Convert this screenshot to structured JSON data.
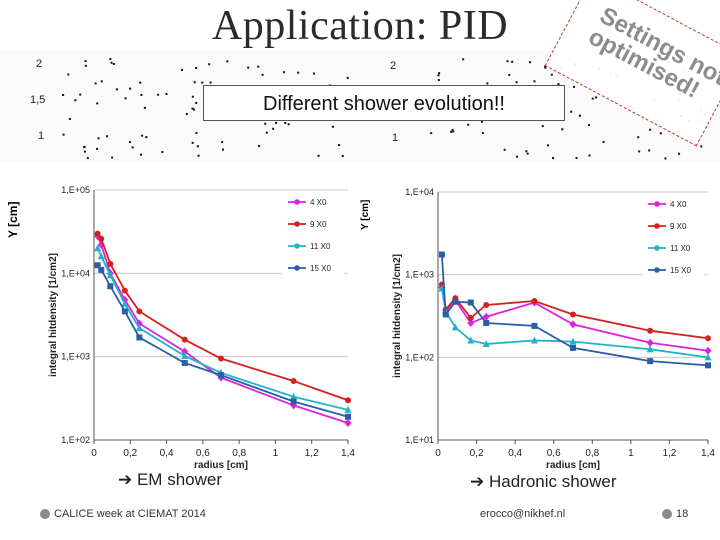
{
  "slide": {
    "title": "Application: PID",
    "banner": "Different shower evolution!!",
    "stamp": "Settings not optimised!",
    "left_caption": "➔ EM shower",
    "right_caption": "➔ Hadronic shower",
    "footer_left": "CALICE week at CIEMAT 2014",
    "footer_center": "erocco@nikhef.nl",
    "page_number": "18"
  },
  "scatter_axes": {
    "left_ticks": [
      "2",
      "1,5",
      "1"
    ],
    "right_ticks": [
      "2",
      "1"
    ],
    "left_ylabel": "Y [cm]",
    "right_ylabel": "Y [cm]"
  },
  "colors": {
    "4X0": "#e020e0",
    "9X0": "#d42020",
    "11X0": "#20b4c8",
    "15X0": "#2a5ea8"
  },
  "chart_data": [
    {
      "type": "line",
      "name": "EM shower",
      "xlabel": "radius [cm]",
      "ylabel": "integral hitdensity [1/cm2]",
      "yscale": "log",
      "xlim": [
        0,
        1.4
      ],
      "ylim": [
        100,
        100000
      ],
      "xticks": [
        "0",
        "0,2",
        "0,4",
        "0,6",
        "0,8",
        "1",
        "1,2",
        "1,4"
      ],
      "yticks": [
        "1,E+02",
        "1,E+03",
        "1,E+04",
        "1,E+05"
      ],
      "series": [
        {
          "name": "4 X0",
          "x": [
            0.02,
            0.04,
            0.09,
            0.17,
            0.25,
            0.5,
            0.7,
            1.1,
            1.4
          ],
          "values": [
            28000,
            22000,
            10000,
            4800,
            2500,
            1150,
            560,
            260,
            160
          ]
        },
        {
          "name": "9 X0",
          "x": [
            0.02,
            0.04,
            0.09,
            0.17,
            0.25,
            0.5,
            0.7,
            1.1,
            1.4
          ],
          "values": [
            30000,
            26000,
            13000,
            6200,
            3500,
            1600,
            950,
            510,
            300
          ]
        },
        {
          "name": "11 X0",
          "x": [
            0.02,
            0.04,
            0.09,
            0.17,
            0.25,
            0.5,
            0.7,
            1.1,
            1.4
          ],
          "values": [
            20000,
            16000,
            9500,
            4300,
            2200,
            1020,
            640,
            330,
            230
          ]
        },
        {
          "name": "15 X0",
          "x": [
            0.02,
            0.04,
            0.09,
            0.17,
            0.25,
            0.5,
            0.7,
            1.1,
            1.4
          ],
          "values": [
            12500,
            11000,
            7000,
            3500,
            1700,
            840,
            600,
            290,
            190
          ]
        }
      ]
    },
    {
      "type": "line",
      "name": "Hadronic shower",
      "xlabel": "radius [cm]",
      "ylabel": "integral hitdensity [1/cm2]",
      "yscale": "log",
      "xlim": [
        0,
        1.4
      ],
      "ylim": [
        10,
        10000
      ],
      "xticks": [
        "0",
        "0,2",
        "0,4",
        "0,6",
        "0,8",
        "1",
        "1,2",
        "1,4"
      ],
      "yticks": [
        "1,E+01",
        "1,E+02",
        "1,E+03",
        "1,E+04"
      ],
      "series": [
        {
          "name": "4 X0",
          "x": [
            0.02,
            0.04,
            0.09,
            0.17,
            0.25,
            0.5,
            0.7,
            1.1,
            1.4
          ],
          "values": [
            700,
            370,
            490,
            260,
            310,
            460,
            250,
            150,
            120
          ]
        },
        {
          "name": "9 X0",
          "x": [
            0.02,
            0.04,
            0.09,
            0.17,
            0.25,
            0.5,
            0.7,
            1.1,
            1.4
          ],
          "values": [
            760,
            380,
            520,
            300,
            430,
            480,
            330,
            210,
            170
          ]
        },
        {
          "name": "11 X0",
          "x": [
            0.02,
            0.04,
            0.09,
            0.17,
            0.25,
            0.5,
            0.7,
            1.1,
            1.4
          ],
          "values": [
            680,
            360,
            230,
            160,
            145,
            160,
            155,
            125,
            100
          ]
        },
        {
          "name": "15 X0",
          "x": [
            0.02,
            0.04,
            0.09,
            0.17,
            0.25,
            0.5,
            0.7,
            1.1,
            1.4
          ],
          "values": [
            1750,
            330,
            470,
            460,
            260,
            240,
            130,
            90,
            80
          ]
        }
      ]
    }
  ]
}
